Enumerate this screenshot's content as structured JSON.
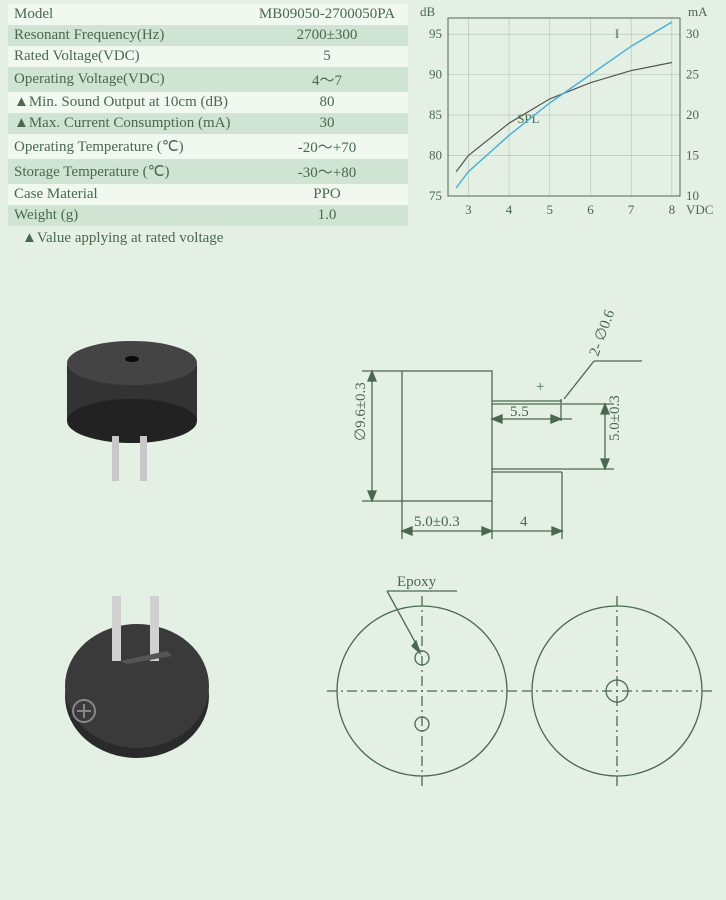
{
  "specs": {
    "rows": [
      {
        "label": "Model",
        "value": "MB09050-2700050PA"
      },
      {
        "label": "Resonant Frequency(Hz)",
        "value": "2700±300"
      },
      {
        "label": "Rated Voltage(VDC)",
        "value": "5"
      },
      {
        "label": "Operating Voltage(VDC)",
        "value": "4～7"
      },
      {
        "label": "▲Min. Sound Output at 10cm (dB)",
        "value": "80"
      },
      {
        "label": "▲Max. Current Consumption (mA)",
        "value": "30"
      },
      {
        "label": "Operating Temperature (℃)",
        "value": "-20～+70"
      },
      {
        "label": "Storage Temperature (℃)",
        "value": "-30～+80"
      },
      {
        "label": "Case Material",
        "value": "PPO"
      },
      {
        "label": "Weight (g)",
        "value": "1.0"
      }
    ],
    "note": "▲Value applying at rated voltage"
  },
  "chart": {
    "type": "line",
    "y_left": {
      "label": "dB",
      "ticks": [
        75,
        80,
        85,
        90,
        95
      ],
      "lim": [
        75,
        97
      ]
    },
    "y_right": {
      "label": "mA",
      "ticks": [
        10,
        15,
        20,
        25,
        30
      ],
      "lim": [
        8,
        32
      ]
    },
    "x": {
      "label": "VDC",
      "ticks": [
        3,
        4,
        5,
        6,
        7,
        8
      ],
      "lim": [
        2.5,
        8.2
      ]
    },
    "series": [
      {
        "name": "SPL",
        "color": "#555555",
        "width": 1.2,
        "pts": [
          [
            2.7,
            78
          ],
          [
            3,
            80
          ],
          [
            4,
            84
          ],
          [
            5,
            87
          ],
          [
            6,
            89
          ],
          [
            7,
            90.5
          ],
          [
            8,
            91.5
          ]
        ]
      },
      {
        "name": "I",
        "color": "#4db0d8",
        "width": 1.5,
        "pts": [
          [
            2.7,
            76
          ],
          [
            3,
            78
          ],
          [
            4,
            82.5
          ],
          [
            5,
            86.5
          ],
          [
            6,
            90
          ],
          [
            7,
            93.5
          ],
          [
            8,
            96.5
          ]
        ]
      }
    ],
    "series_label_pos": {
      "SPL": [
        4.2,
        84
      ],
      "I": [
        6.6,
        94.5
      ]
    },
    "grid_color": "#b0c0b0"
  },
  "dims": {
    "diameter": "∅9.6±0.3",
    "body_w": "5.0±0.3",
    "pin_len": "4",
    "pin_gap": "5.5",
    "pin_pitch": "5.0±0.3",
    "pin_dia": "2- ∅0.6",
    "epoxy": "Epoxy",
    "plus": "+"
  },
  "colors": {
    "page_bg": "#e4f0e4",
    "dim_line": "#4a6850",
    "buzzer_body": "#333333",
    "buzzer_top": "#444444",
    "pin": "#c8c8c8"
  }
}
